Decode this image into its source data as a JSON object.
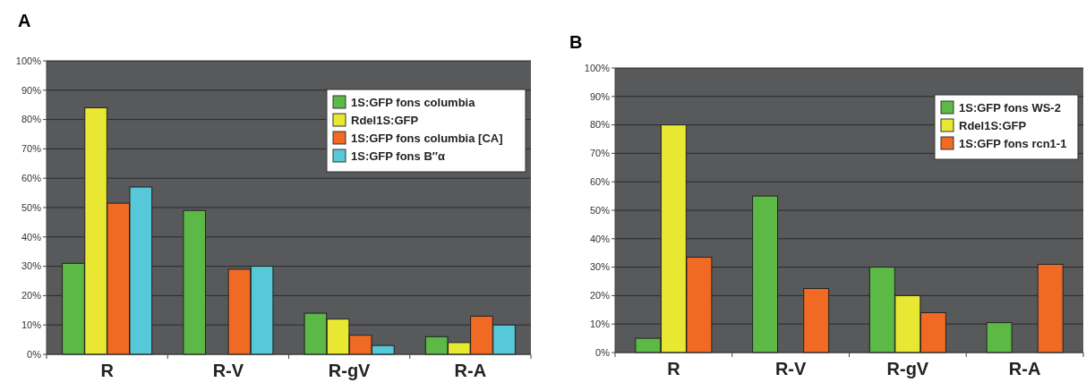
{
  "chart_data": [
    {
      "type": "bar",
      "title": "A",
      "categories": [
        "R",
        "R-V",
        "R-gV",
        "R-A"
      ],
      "series": [
        {
          "name": "1S:GFP fons columbia",
          "color": "#5cb946",
          "values": [
            31,
            49,
            14,
            6
          ]
        },
        {
          "name": "Rdel1S:GFP",
          "color": "#e8e832",
          "values": [
            84,
            null,
            12,
            4
          ]
        },
        {
          "name": "1S:GFP fons columbia [CA]",
          "color": "#f06a24",
          "values": [
            51.5,
            29,
            6.5,
            13
          ]
        },
        {
          "name": "1S:GFP fons B″α",
          "color": "#56c8d8",
          "values": [
            57,
            30,
            3,
            10
          ]
        }
      ],
      "ylim": [
        0,
        100
      ],
      "yticks": [
        {
          "value": 0,
          "label": "0%"
        },
        {
          "value": 10,
          "label": "10%"
        },
        {
          "value": 20,
          "label": "20%"
        },
        {
          "value": 30,
          "label": "30%"
        },
        {
          "value": 40,
          "label": "40%"
        },
        {
          "value": 50,
          "label": "50%"
        },
        {
          "value": 60,
          "label": "60%"
        },
        {
          "value": 70,
          "label": "70%"
        },
        {
          "value": 80,
          "label": "80%"
        },
        {
          "value": 90,
          "label": "90%"
        },
        {
          "value": 100,
          "label": "100%"
        }
      ],
      "grid": "y",
      "legend": "top right"
    },
    {
      "type": "bar",
      "title": "B",
      "categories": [
        "R",
        "R-V",
        "R-gV",
        "R-A"
      ],
      "series": [
        {
          "name": "1S:GFP fons WS-2",
          "color": "#5cb946",
          "values": [
            5,
            55,
            30,
            10.5
          ]
        },
        {
          "name": "Rdel1S:GFP",
          "color": "#e8e832",
          "values": [
            80,
            null,
            20,
            null
          ]
        },
        {
          "name": "1S:GFP fons rcn1-1",
          "color": "#f06a24",
          "values": [
            33.5,
            22.5,
            14,
            31
          ]
        }
      ],
      "ylim": [
        0,
        100
      ],
      "yticks": [
        {
          "value": 0,
          "label": "0%"
        },
        {
          "value": 10,
          "label": "10%"
        },
        {
          "value": 20,
          "label": "20%"
        },
        {
          "value": 30,
          "label": "30%"
        },
        {
          "value": 40,
          "label": "40%"
        },
        {
          "value": 50,
          "label": "50%"
        },
        {
          "value": 60,
          "label": "60%"
        },
        {
          "value": 70,
          "label": "70%"
        },
        {
          "value": 80,
          "label": "80%"
        },
        {
          "value": 90,
          "label": "90%"
        },
        {
          "value": 100,
          "label": "100%"
        }
      ],
      "grid": "y",
      "legend": "top right"
    }
  ]
}
